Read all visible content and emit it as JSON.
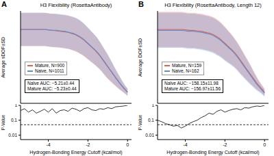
{
  "chart_data": [
    {
      "type": "line",
      "label": "A",
      "title": "H3 Flexibility (RosettaAntibody)",
      "ylabel": "Average sDOF±SD",
      "tick_labels": false,
      "legend": "lower left",
      "xlim": [
        -5.4,
        0.2
      ],
      "ylim": [
        0,
        1
      ],
      "x": [
        -5.4,
        -5.2,
        -5.0,
        -4.8,
        -4.6,
        -4.4,
        -4.2,
        -4.0,
        -3.8,
        -3.6,
        -3.4,
        -3.2,
        -3.0,
        -2.8,
        -2.6,
        -2.4,
        -2.2,
        -2.0,
        -1.8,
        -1.6,
        -1.4,
        -1.2,
        -1.0,
        -0.8,
        -0.6,
        -0.4,
        -0.2,
        0
      ],
      "series": [
        {
          "name": "Mature, N=900",
          "color": "#e8604c",
          "values": [
            0.8,
            0.8,
            0.8,
            0.8,
            0.8,
            0.8,
            0.8,
            0.795,
            0.79,
            0.785,
            0.78,
            0.775,
            0.77,
            0.755,
            0.74,
            0.715,
            0.685,
            0.645,
            0.605,
            0.565,
            0.515,
            0.455,
            0.395,
            0.335,
            0.275,
            0.22,
            0.165,
            0.12
          ],
          "sd": [
            0.18,
            0.18,
            0.18,
            0.18,
            0.18,
            0.18,
            0.18,
            0.18,
            0.18,
            0.18,
            0.18,
            0.18,
            0.18,
            0.18,
            0.18,
            0.18,
            0.175,
            0.17,
            0.165,
            0.16,
            0.15,
            0.14,
            0.13,
            0.11,
            0.09,
            0.07,
            0.05,
            0.04
          ]
        },
        {
          "name": "Naive, N=1011",
          "color": "#5b8ed6",
          "values": [
            0.8,
            0.8,
            0.8,
            0.8,
            0.8,
            0.8,
            0.8,
            0.795,
            0.79,
            0.79,
            0.785,
            0.78,
            0.77,
            0.76,
            0.745,
            0.72,
            0.69,
            0.65,
            0.61,
            0.57,
            0.52,
            0.46,
            0.4,
            0.34,
            0.28,
            0.22,
            0.17,
            0.12
          ],
          "sd": [
            0.18,
            0.18,
            0.18,
            0.18,
            0.18,
            0.18,
            0.18,
            0.18,
            0.18,
            0.18,
            0.18,
            0.18,
            0.18,
            0.18,
            0.18,
            0.18,
            0.175,
            0.17,
            0.165,
            0.16,
            0.15,
            0.14,
            0.13,
            0.11,
            0.09,
            0.07,
            0.05,
            0.04
          ]
        }
      ],
      "annotations": [
        "Naïve AUC: −5.21±0.44",
        "Mature AUC: −5.23±0.44"
      ]
    },
    {
      "type": "line",
      "ylabel": "P-Value",
      "xlabel": "Hydrogen-Bonding Energy Cutoff (kcal/mol)",
      "log": "y",
      "xlim": [
        -5.4,
        0.2
      ],
      "xticks": [
        -4,
        -2,
        0
      ],
      "ylim": [
        0.005,
        1
      ],
      "yticks": [
        0.01,
        0.1,
        1
      ],
      "hline": 0.05,
      "color": "#000000",
      "x": [
        -5.4,
        -5.2,
        -5.0,
        -4.8,
        -4.6,
        -4.4,
        -4.2,
        -4.0,
        -3.8,
        -3.6,
        -3.4,
        -3.2,
        -3.0,
        -2.8,
        -2.6,
        -2.4,
        -2.2,
        -2.0,
        -1.8,
        -1.6,
        -1.4,
        -1.2,
        -1.0,
        -0.8,
        -0.6,
        -0.4,
        -0.2,
        0
      ],
      "values": [
        0.45,
        0.6,
        0.35,
        0.5,
        0.3,
        0.4,
        0.55,
        0.35,
        0.6,
        0.3,
        0.45,
        0.5,
        0.4,
        0.65,
        0.55,
        0.4,
        0.6,
        0.7,
        0.5,
        0.45,
        0.6,
        0.55,
        0.7,
        0.6,
        0.8,
        0.85,
        0.9,
        1
      ]
    },
    {
      "type": "line",
      "label": "B",
      "title": "H3 Flexibility (RosettaAntibody, Length 12)",
      "ylabel": "Average DOF±SD",
      "tick_labels": false,
      "legend": "lower left",
      "xlim": [
        -5.4,
        0.2
      ],
      "ylim": [
        0,
        100
      ],
      "x": [
        -5.4,
        -5.2,
        -5.0,
        -4.8,
        -4.6,
        -4.4,
        -4.2,
        -4.0,
        -3.8,
        -3.6,
        -3.4,
        -3.2,
        -3.0,
        -2.8,
        -2.6,
        -2.4,
        -2.2,
        -2.0,
        -1.8,
        -1.6,
        -1.4,
        -1.2,
        -1.0,
        -0.8,
        -0.6,
        -0.4,
        -0.2,
        0
      ],
      "series": [
        {
          "name": "Mature, N=159",
          "color": "#e8604c",
          "values": [
            80,
            80,
            80,
            80,
            80,
            80,
            80,
            79.5,
            79,
            79,
            78.5,
            78,
            77,
            76,
            74.5,
            72,
            69,
            65,
            61,
            57,
            52,
            46,
            40,
            34,
            28,
            22,
            17,
            12
          ],
          "sd": [
            19,
            19,
            19,
            19,
            19,
            19,
            19,
            19,
            19,
            19,
            19,
            19,
            19,
            19,
            19,
            19,
            18.5,
            18,
            17,
            16,
            15,
            14,
            12.5,
            11,
            9,
            7,
            5,
            4
          ]
        },
        {
          "name": "Naive, N=162",
          "color": "#5b8ed6",
          "values": [
            79,
            79,
            79,
            79,
            79,
            79,
            79,
            78.5,
            78,
            78,
            77.5,
            77,
            76,
            75,
            73.5,
            71,
            68,
            64,
            60,
            56,
            51,
            45,
            39,
            33,
            27,
            21,
            16,
            11
          ],
          "sd": [
            19,
            19,
            19,
            19,
            19,
            19,
            19,
            19,
            19,
            19,
            19,
            19,
            19,
            19,
            19,
            19,
            18.5,
            18,
            17,
            16,
            15,
            14,
            12.5,
            11,
            9,
            7,
            5,
            4
          ]
        }
      ],
      "annotations": [
        "Naïve AUC: −158.15±11.98",
        "Mature AUC: −156.97±11.56"
      ]
    },
    {
      "type": "line",
      "ylabel": "P-Value",
      "xlabel": "Hydrogen-Bonding Energy Cutoff (kcal/mol)",
      "log": "y",
      "xlim": [
        -5.4,
        0.2
      ],
      "xticks": [
        -4,
        -2,
        0
      ],
      "ylim": [
        0.005,
        1
      ],
      "yticks": [
        0.01,
        0.1,
        1
      ],
      "hline": 0.05,
      "color": "#000000",
      "x": [
        -5.4,
        -5.2,
        -5.0,
        -4.8,
        -4.6,
        -4.4,
        -4.2,
        -4.0,
        -3.8,
        -3.6,
        -3.4,
        -3.2,
        -3.0,
        -2.8,
        -2.6,
        -2.4,
        -2.2,
        -2.0,
        -1.8,
        -1.6,
        -1.4,
        -1.2,
        -1.0,
        -0.8,
        -0.6,
        -0.4,
        -0.2,
        0
      ],
      "values": [
        0.1,
        0.08,
        0.06,
        0.05,
        0.04,
        0.045,
        0.03,
        0.04,
        0.06,
        0.08,
        0.1,
        0.15,
        0.2,
        0.3,
        0.25,
        0.4,
        0.5,
        0.35,
        0.45,
        0.55,
        0.6,
        0.5,
        0.7,
        0.65,
        0.8,
        0.9,
        0.85,
        1
      ]
    }
  ]
}
